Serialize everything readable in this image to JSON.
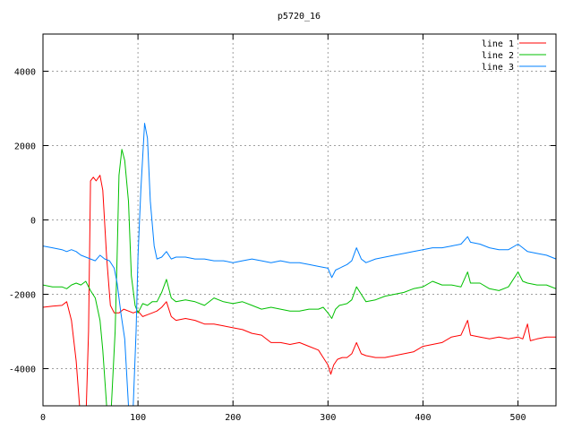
{
  "chart_data": {
    "type": "line",
    "title": "p5720_16",
    "xlabel": "",
    "ylabel": "",
    "xlim": [
      0,
      540
    ],
    "ylim": [
      -5000,
      5000
    ],
    "xticks": [
      0,
      100,
      200,
      300,
      400,
      500
    ],
    "yticks": [
      -4000,
      -2000,
      0,
      2000,
      4000
    ],
    "grid": true,
    "legend_position": "top-right",
    "series": [
      {
        "name": "line 1",
        "color": "#ff0000",
        "points": [
          [
            0,
            -2350
          ],
          [
            10,
            -2320
          ],
          [
            20,
            -2300
          ],
          [
            25,
            -2200
          ],
          [
            30,
            -2700
          ],
          [
            35,
            -3800
          ],
          [
            40,
            -5500
          ],
          [
            45,
            -5500
          ],
          [
            48,
            -3000
          ],
          [
            50,
            1050
          ],
          [
            53,
            1150
          ],
          [
            56,
            1050
          ],
          [
            60,
            1200
          ],
          [
            63,
            800
          ],
          [
            67,
            -1000
          ],
          [
            71,
            -2300
          ],
          [
            75,
            -2500
          ],
          [
            80,
            -2500
          ],
          [
            85,
            -2400
          ],
          [
            90,
            -2450
          ],
          [
            95,
            -2500
          ],
          [
            100,
            -2450
          ],
          [
            105,
            -2600
          ],
          [
            110,
            -2550
          ],
          [
            115,
            -2500
          ],
          [
            120,
            -2450
          ],
          [
            125,
            -2350
          ],
          [
            130,
            -2200
          ],
          [
            135,
            -2600
          ],
          [
            140,
            -2700
          ],
          [
            150,
            -2650
          ],
          [
            160,
            -2700
          ],
          [
            170,
            -2800
          ],
          [
            180,
            -2800
          ],
          [
            190,
            -2850
          ],
          [
            200,
            -2900
          ],
          [
            210,
            -2950
          ],
          [
            220,
            -3050
          ],
          [
            230,
            -3100
          ],
          [
            240,
            -3300
          ],
          [
            250,
            -3300
          ],
          [
            260,
            -3350
          ],
          [
            270,
            -3300
          ],
          [
            280,
            -3400
          ],
          [
            290,
            -3500
          ],
          [
            295,
            -3700
          ],
          [
            300,
            -3900
          ],
          [
            303,
            -4150
          ],
          [
            306,
            -3900
          ],
          [
            310,
            -3750
          ],
          [
            315,
            -3700
          ],
          [
            320,
            -3700
          ],
          [
            325,
            -3600
          ],
          [
            330,
            -3300
          ],
          [
            335,
            -3600
          ],
          [
            340,
            -3650
          ],
          [
            350,
            -3700
          ],
          [
            360,
            -3700
          ],
          [
            370,
            -3650
          ],
          [
            380,
            -3600
          ],
          [
            390,
            -3550
          ],
          [
            400,
            -3400
          ],
          [
            410,
            -3350
          ],
          [
            420,
            -3300
          ],
          [
            430,
            -3150
          ],
          [
            440,
            -3100
          ],
          [
            447,
            -2700
          ],
          [
            450,
            -3100
          ],
          [
            460,
            -3150
          ],
          [
            470,
            -3200
          ],
          [
            480,
            -3150
          ],
          [
            490,
            -3200
          ],
          [
            500,
            -3150
          ],
          [
            505,
            -3200
          ],
          [
            510,
            -2800
          ],
          [
            513,
            -3250
          ],
          [
            520,
            -3200
          ],
          [
            530,
            -3150
          ],
          [
            540,
            -3150
          ]
        ]
      },
      {
        "name": "line 2",
        "color": "#00c000",
        "points": [
          [
            0,
            -1750
          ],
          [
            10,
            -1800
          ],
          [
            20,
            -1800
          ],
          [
            25,
            -1850
          ],
          [
            30,
            -1750
          ],
          [
            35,
            -1700
          ],
          [
            40,
            -1750
          ],
          [
            45,
            -1650
          ],
          [
            50,
            -1900
          ],
          [
            55,
            -2100
          ],
          [
            60,
            -2700
          ],
          [
            63,
            -3500
          ],
          [
            67,
            -5000
          ],
          [
            72,
            -5000
          ],
          [
            76,
            -3000
          ],
          [
            78,
            -1000
          ],
          [
            80,
            1200
          ],
          [
            83,
            1900
          ],
          [
            86,
            1600
          ],
          [
            90,
            500
          ],
          [
            93,
            -1500
          ],
          [
            97,
            -2300
          ],
          [
            100,
            -2500
          ],
          [
            105,
            -2250
          ],
          [
            110,
            -2300
          ],
          [
            115,
            -2200
          ],
          [
            120,
            -2200
          ],
          [
            125,
            -1950
          ],
          [
            130,
            -1600
          ],
          [
            135,
            -2100
          ],
          [
            140,
            -2200
          ],
          [
            150,
            -2150
          ],
          [
            160,
            -2200
          ],
          [
            170,
            -2300
          ],
          [
            180,
            -2100
          ],
          [
            190,
            -2200
          ],
          [
            200,
            -2250
          ],
          [
            210,
            -2200
          ],
          [
            220,
            -2300
          ],
          [
            230,
            -2400
          ],
          [
            240,
            -2350
          ],
          [
            250,
            -2400
          ],
          [
            260,
            -2450
          ],
          [
            270,
            -2450
          ],
          [
            280,
            -2400
          ],
          [
            290,
            -2400
          ],
          [
            295,
            -2350
          ],
          [
            300,
            -2500
          ],
          [
            304,
            -2650
          ],
          [
            308,
            -2400
          ],
          [
            312,
            -2300
          ],
          [
            320,
            -2250
          ],
          [
            325,
            -2150
          ],
          [
            330,
            -1800
          ],
          [
            335,
            -2000
          ],
          [
            340,
            -2200
          ],
          [
            350,
            -2150
          ],
          [
            360,
            -2050
          ],
          [
            370,
            -2000
          ],
          [
            380,
            -1950
          ],
          [
            390,
            -1850
          ],
          [
            400,
            -1800
          ],
          [
            410,
            -1650
          ],
          [
            420,
            -1750
          ],
          [
            430,
            -1750
          ],
          [
            440,
            -1800
          ],
          [
            447,
            -1400
          ],
          [
            450,
            -1700
          ],
          [
            460,
            -1700
          ],
          [
            470,
            -1850
          ],
          [
            480,
            -1900
          ],
          [
            490,
            -1800
          ],
          [
            500,
            -1400
          ],
          [
            505,
            -1650
          ],
          [
            510,
            -1700
          ],
          [
            520,
            -1750
          ],
          [
            530,
            -1750
          ],
          [
            540,
            -1850
          ]
        ]
      },
      {
        "name": "line 3",
        "color": "#0080ff",
        "points": [
          [
            0,
            -700
          ],
          [
            10,
            -750
          ],
          [
            20,
            -800
          ],
          [
            25,
            -850
          ],
          [
            30,
            -800
          ],
          [
            35,
            -850
          ],
          [
            40,
            -950
          ],
          [
            45,
            -1000
          ],
          [
            50,
            -1050
          ],
          [
            55,
            -1100
          ],
          [
            60,
            -950
          ],
          [
            65,
            -1050
          ],
          [
            70,
            -1100
          ],
          [
            75,
            -1300
          ],
          [
            78,
            -1700
          ],
          [
            82,
            -2500
          ],
          [
            86,
            -3200
          ],
          [
            90,
            -5000
          ],
          [
            95,
            -5000
          ],
          [
            98,
            -3000
          ],
          [
            100,
            -1000
          ],
          [
            103,
            800
          ],
          [
            107,
            2600
          ],
          [
            110,
            2200
          ],
          [
            113,
            500
          ],
          [
            117,
            -700
          ],
          [
            120,
            -1050
          ],
          [
            125,
            -1000
          ],
          [
            130,
            -850
          ],
          [
            135,
            -1050
          ],
          [
            140,
            -1000
          ],
          [
            150,
            -1000
          ],
          [
            160,
            -1050
          ],
          [
            170,
            -1050
          ],
          [
            180,
            -1100
          ],
          [
            190,
            -1100
          ],
          [
            200,
            -1150
          ],
          [
            210,
            -1100
          ],
          [
            220,
            -1050
          ],
          [
            230,
            -1100
          ],
          [
            240,
            -1150
          ],
          [
            250,
            -1100
          ],
          [
            260,
            -1150
          ],
          [
            270,
            -1150
          ],
          [
            280,
            -1200
          ],
          [
            290,
            -1250
          ],
          [
            300,
            -1300
          ],
          [
            304,
            -1550
          ],
          [
            308,
            -1350
          ],
          [
            312,
            -1300
          ],
          [
            320,
            -1200
          ],
          [
            325,
            -1100
          ],
          [
            330,
            -750
          ],
          [
            335,
            -1050
          ],
          [
            340,
            -1150
          ],
          [
            350,
            -1050
          ],
          [
            360,
            -1000
          ],
          [
            370,
            -950
          ],
          [
            380,
            -900
          ],
          [
            390,
            -850
          ],
          [
            400,
            -800
          ],
          [
            410,
            -750
          ],
          [
            420,
            -750
          ],
          [
            430,
            -700
          ],
          [
            440,
            -650
          ],
          [
            447,
            -450
          ],
          [
            450,
            -600
          ],
          [
            460,
            -650
          ],
          [
            470,
            -750
          ],
          [
            480,
            -800
          ],
          [
            490,
            -800
          ],
          [
            500,
            -650
          ],
          [
            505,
            -750
          ],
          [
            510,
            -850
          ],
          [
            520,
            -900
          ],
          [
            530,
            -950
          ],
          [
            540,
            -1050
          ]
        ]
      }
    ]
  }
}
